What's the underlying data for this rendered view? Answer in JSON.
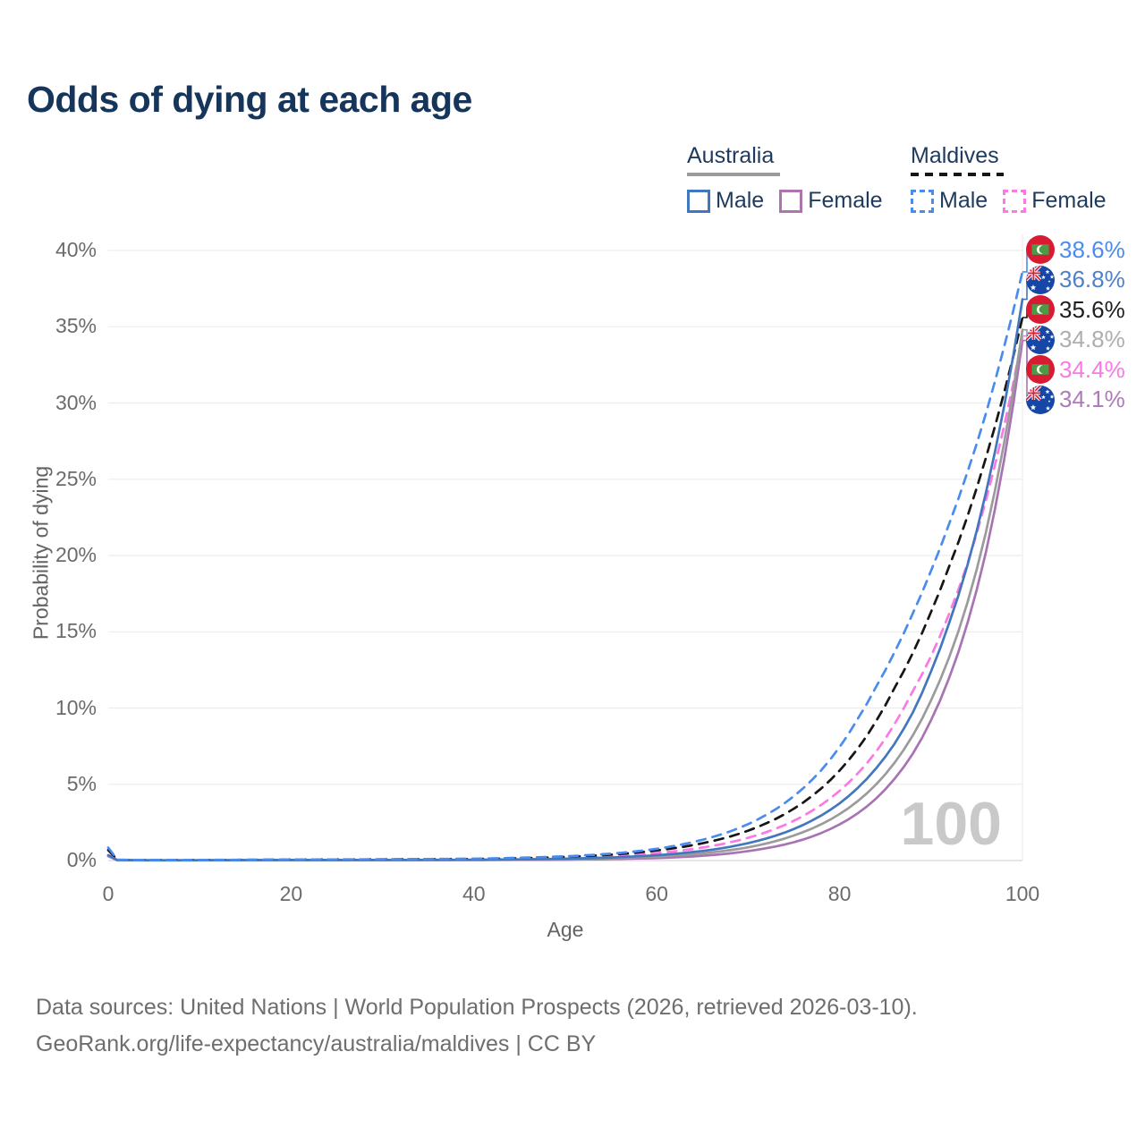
{
  "title": "Odds of dying at each age",
  "legend": {
    "groups": [
      {
        "label": "Australia",
        "line_style": "solid",
        "underline_color": "#9b9b9b",
        "items": [
          {
            "label": "Male",
            "color": "#4377bd"
          },
          {
            "label": "Female",
            "color": "#ad74ae"
          }
        ]
      },
      {
        "label": "Maldives",
        "line_style": "dashed",
        "underline_color": "#161616",
        "items": [
          {
            "label": "Male",
            "color": "#4a8cee"
          },
          {
            "label": "Female",
            "color": "#fb78e5"
          }
        ]
      }
    ]
  },
  "chart_data": {
    "type": "line",
    "title": "Odds of dying at each age",
    "xlabel": "Age",
    "ylabel": "Probability of dying",
    "xlim": [
      0,
      100
    ],
    "ylim": [
      0,
      40
    ],
    "x_ticks": [
      0,
      20,
      40,
      60,
      80,
      100
    ],
    "y_ticks": [
      0,
      5,
      10,
      15,
      20,
      25,
      30,
      35,
      40
    ],
    "y_tick_suffix": "%",
    "grid": "horizontal",
    "legend_position": "top-right",
    "watermark": "100",
    "x": [
      0,
      1,
      5,
      10,
      20,
      30,
      40,
      50,
      55,
      60,
      65,
      70,
      75,
      80,
      82,
      84,
      86,
      88,
      90,
      92,
      94,
      96,
      98,
      100
    ],
    "series": [
      {
        "id": "maldives-male",
        "name": "Maldives Male",
        "country": "Maldives",
        "sex": "Male",
        "flag": "maldives",
        "color": "#4a8cee",
        "label_color": "#4a8cee",
        "dashed": true,
        "end_label": "38.6%",
        "values": [
          0.85,
          0.05,
          0.035,
          0.04,
          0.065,
          0.08,
          0.12,
          0.28,
          0.45,
          0.77,
          1.36,
          2.39,
          4.22,
          7.44,
          9.3,
          11.4,
          13.65,
          16.2,
          19.0,
          22.1,
          25.5,
          29.3,
          33.7,
          38.6
        ]
      },
      {
        "id": "australia-male",
        "name": "Australia Male",
        "country": "Australia",
        "sex": "Male",
        "flag": "australia",
        "color": "#4377bd",
        "label_color": "#4f80c8",
        "dashed": false,
        "end_label": "36.8%",
        "values": [
          0.35,
          0.03,
          0.02,
          0.02,
          0.035,
          0.04,
          0.05,
          0.12,
          0.2,
          0.35,
          0.63,
          1.14,
          2.07,
          3.75,
          4.77,
          6.05,
          7.65,
          9.7,
          12.4,
          15.6,
          19.4,
          24.1,
          29.8,
          36.8
        ]
      },
      {
        "id": "maldives-all",
        "name": "Maldives",
        "country": "Maldives",
        "sex": "All",
        "flag": "maldives",
        "color": "#161616",
        "label_color": "#1f1f1f",
        "dashed": true,
        "end_label": "35.6%",
        "values": [
          0.7,
          0.04,
          0.03,
          0.035,
          0.06,
          0.075,
          0.1,
          0.24,
          0.39,
          0.66,
          1.13,
          1.96,
          3.4,
          5.9,
          7.35,
          9.15,
          11.3,
          13.6,
          16.3,
          19.3,
          22.6,
          26.4,
          30.7,
          35.6
        ]
      },
      {
        "id": "australia-all",
        "name": "Australia",
        "country": "Australia",
        "sex": "All",
        "flag": "australia",
        "color": "#9b9b9b",
        "label_color": "#aeaeae",
        "dashed": false,
        "end_label": "34.8%",
        "values": [
          0.3,
          0.03,
          0.015,
          0.02,
          0.03,
          0.035,
          0.045,
          0.09,
          0.15,
          0.26,
          0.47,
          0.87,
          1.64,
          3.05,
          3.9,
          5.0,
          6.4,
          8.2,
          10.5,
          13.35,
          16.95,
          21.5,
          27.4,
          34.8
        ]
      },
      {
        "id": "maldives-female",
        "name": "Maldives Female",
        "country": "Maldives",
        "sex": "Female",
        "flag": "maldives",
        "color": "#fb78e5",
        "label_color": "#fb78e5",
        "dashed": true,
        "end_label": "34.4%",
        "values": [
          0.65,
          0.035,
          0.025,
          0.03,
          0.045,
          0.055,
          0.07,
          0.17,
          0.28,
          0.49,
          0.85,
          1.49,
          2.61,
          4.57,
          5.72,
          7.15,
          8.94,
          11.1,
          13.4,
          16.2,
          19.5,
          23.6,
          28.5,
          34.4
        ]
      },
      {
        "id": "australia-female",
        "name": "Australia Female",
        "country": "Australia",
        "sex": "Female",
        "flag": "australia",
        "color": "#a873b3",
        "label_color": "#ab7cb8",
        "dashed": false,
        "end_label": "34.1%",
        "values": [
          0.28,
          0.02,
          0.012,
          0.015,
          0.02,
          0.025,
          0.035,
          0.06,
          0.1,
          0.16,
          0.31,
          0.62,
          1.2,
          2.37,
          3.1,
          4.07,
          5.35,
          7.0,
          9.2,
          12.0,
          15.6,
          20.2,
          26.3,
          34.1
        ]
      }
    ]
  },
  "colors": {
    "title_text": "#16355b",
    "legend_text": "#1e3a5f",
    "gridline": "#ececec",
    "baseline": "#d6d6d6",
    "axis_text": "#6b6b6b",
    "watermark": "#c9c9c9",
    "footer_text": "#6e6e6e",
    "flag_maldives_red": "#d81b33",
    "flag_maldives_green": "#4d9a44",
    "flag_australia_blue": "#1747a6"
  },
  "footer": {
    "line1": "Data sources: United Nations | World Population Prospects (2026, retrieved 2026-03-10).",
    "line2": "GeoRank.org/life-expectancy/australia/maldives | CC BY"
  }
}
